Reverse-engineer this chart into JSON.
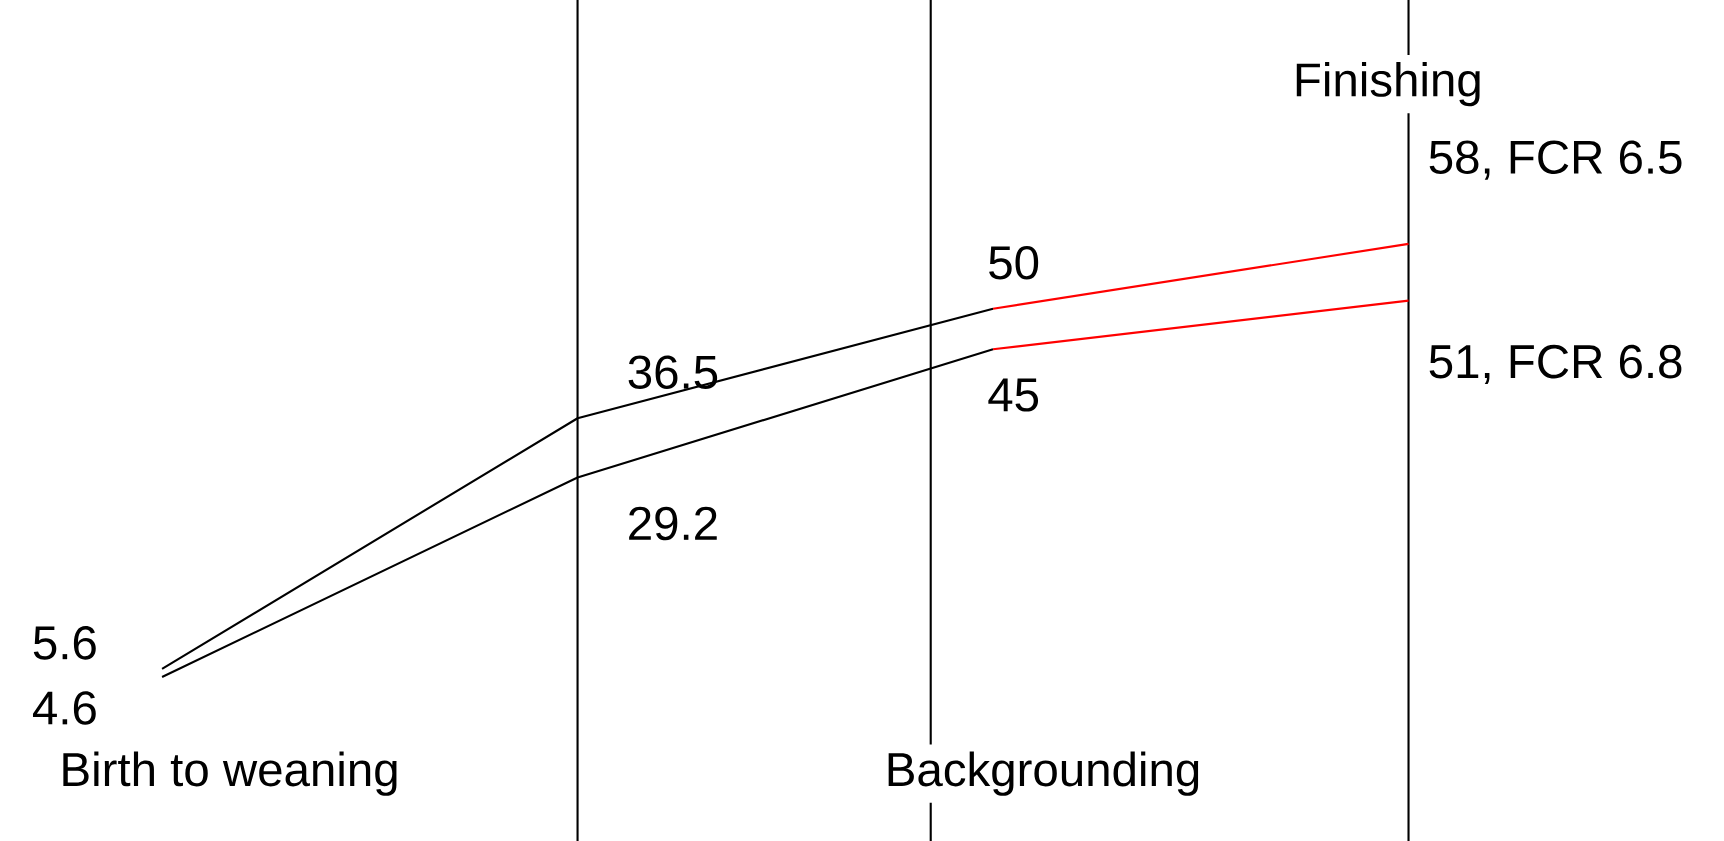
{
  "chart_data": {
    "type": "line",
    "categories": [
      null,
      null,
      null,
      null
    ],
    "series": [
      {
        "color": "#000000",
        "values": [
          5.6,
          36.5,
          50,
          null
        ],
        "value_labels": [
          "5.6",
          "36.5",
          "50",
          null
        ]
      },
      {
        "color": "#ff0000",
        "values": [
          null,
          null,
          50,
          58
        ],
        "value_labels": [
          null,
          null,
          null,
          "58, FCR 6.5"
        ]
      },
      {
        "color": "#000000",
        "values": [
          4.6,
          29.2,
          45,
          null
        ],
        "value_labels": [
          "4.6",
          "29.2",
          "45",
          null
        ]
      },
      {
        "color": "#ff0000",
        "values": [
          null,
          null,
          45,
          51
        ],
        "value_labels": [
          null,
          null,
          null,
          "51, FCR 6.8"
        ]
      }
    ],
    "annotations": [
      "Birth to weaning",
      "Backgrounding",
      "Finishing"
    ],
    "tick_labels": false
  }
}
